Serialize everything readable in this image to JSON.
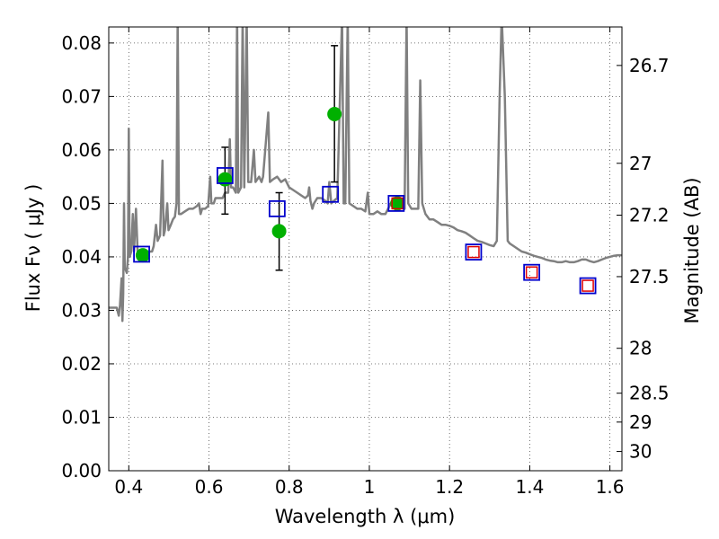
{
  "chart_data": {
    "type": "scatter",
    "xlabel": "Wavelength  λ (μm)",
    "ylabel": "Flux  Fν  ( μJy )",
    "y2label": "Magnitude (AB)",
    "xlim": [
      0.35,
      1.63
    ],
    "ylim": [
      0.0,
      0.083
    ],
    "grid": true,
    "x_ticks": [
      0.4,
      0.6,
      0.8,
      1.0,
      1.2,
      1.4,
      1.6
    ],
    "x_tick_labels": [
      "0.4",
      "0.6",
      "0.8",
      "1",
      "1.2",
      "1.4",
      "1.6"
    ],
    "y_ticks": [
      0.0,
      0.01,
      0.02,
      0.03,
      0.04,
      0.05,
      0.06,
      0.07,
      0.08
    ],
    "y_tick_labels": [
      "0.00",
      "0.01",
      "0.02",
      "0.03",
      "0.04",
      "0.05",
      "0.06",
      "0.07",
      "0.08"
    ],
    "y2_ticks": [
      {
        "label": "26.7",
        "flux": 0.0758
      },
      {
        "label": "27",
        "flux": 0.0575
      },
      {
        "label": "27.2",
        "flux": 0.0478
      },
      {
        "label": "27.5",
        "flux": 0.0363
      },
      {
        "label": "28",
        "flux": 0.0229
      },
      {
        "label": "28.5",
        "flux": 0.0145
      },
      {
        "label": "29",
        "flux": 0.0091
      },
      {
        "label": "30",
        "flux": 0.0036
      }
    ],
    "model_spectrum": {
      "color": "#808080",
      "points": [
        [
          0.35,
          0.0305
        ],
        [
          0.37,
          0.0305
        ],
        [
          0.375,
          0.029
        ],
        [
          0.378,
          0.031
        ],
        [
          0.382,
          0.036
        ],
        [
          0.384,
          0.028
        ],
        [
          0.386,
          0.033
        ],
        [
          0.388,
          0.05
        ],
        [
          0.39,
          0.038
        ],
        [
          0.395,
          0.037
        ],
        [
          0.398,
          0.04
        ],
        [
          0.4,
          0.064
        ],
        [
          0.402,
          0.04
        ],
        [
          0.406,
          0.041
        ],
        [
          0.41,
          0.048
        ],
        [
          0.413,
          0.041
        ],
        [
          0.418,
          0.049
        ],
        [
          0.422,
          0.041
        ],
        [
          0.428,
          0.041
        ],
        [
          0.432,
          0.04
        ],
        [
          0.438,
          0.04
        ],
        [
          0.445,
          0.04
        ],
        [
          0.452,
          0.041
        ],
        [
          0.458,
          0.041
        ],
        [
          0.462,
          0.042
        ],
        [
          0.468,
          0.046
        ],
        [
          0.472,
          0.043
        ],
        [
          0.478,
          0.044
        ],
        [
          0.484,
          0.058
        ],
        [
          0.487,
          0.044
        ],
        [
          0.49,
          0.045
        ],
        [
          0.496,
          0.05
        ],
        [
          0.499,
          0.045
        ],
        [
          0.505,
          0.046
        ],
        [
          0.51,
          0.047
        ],
        [
          0.515,
          0.0475
        ],
        [
          0.519,
          0.05
        ],
        [
          0.522,
          0.085
        ],
        [
          0.525,
          0.048
        ],
        [
          0.53,
          0.048
        ],
        [
          0.54,
          0.0485
        ],
        [
          0.55,
          0.049
        ],
        [
          0.56,
          0.049
        ],
        [
          0.57,
          0.0495
        ],
        [
          0.575,
          0.05
        ],
        [
          0.579,
          0.048
        ],
        [
          0.583,
          0.049
        ],
        [
          0.59,
          0.049
        ],
        [
          0.598,
          0.0495
        ],
        [
          0.603,
          0.055
        ],
        [
          0.606,
          0.05
        ],
        [
          0.612,
          0.05
        ],
        [
          0.616,
          0.051
        ],
        [
          0.625,
          0.051
        ],
        [
          0.634,
          0.051
        ],
        [
          0.64,
          0.052
        ],
        [
          0.648,
          0.052
        ],
        [
          0.652,
          0.062
        ],
        [
          0.655,
          0.053
        ],
        [
          0.66,
          0.053
        ],
        [
          0.667,
          0.052
        ],
        [
          0.67,
          0.085
        ],
        [
          0.673,
          0.052
        ],
        [
          0.68,
          0.053
        ],
        [
          0.684,
          0.085
        ],
        [
          0.688,
          0.053
        ],
        [
          0.694,
          0.085
        ],
        [
          0.698,
          0.054
        ],
        [
          0.705,
          0.054
        ],
        [
          0.712,
          0.06
        ],
        [
          0.716,
          0.054
        ],
        [
          0.725,
          0.055
        ],
        [
          0.731,
          0.054
        ],
        [
          0.735,
          0.055
        ],
        [
          0.748,
          0.067
        ],
        [
          0.752,
          0.054
        ],
        [
          0.76,
          0.0545
        ],
        [
          0.77,
          0.055
        ],
        [
          0.78,
          0.054
        ],
        [
          0.79,
          0.0545
        ],
        [
          0.8,
          0.053
        ],
        [
          0.81,
          0.0525
        ],
        [
          0.82,
          0.052
        ],
        [
          0.83,
          0.0515
        ],
        [
          0.84,
          0.051
        ],
        [
          0.847,
          0.0515
        ],
        [
          0.85,
          0.053
        ],
        [
          0.853,
          0.0505
        ],
        [
          0.858,
          0.049
        ],
        [
          0.862,
          0.05
        ],
        [
          0.87,
          0.051
        ],
        [
          0.88,
          0.051
        ],
        [
          0.89,
          0.0505
        ],
        [
          0.896,
          0.05
        ],
        [
          0.9,
          0.054
        ],
        [
          0.905,
          0.05
        ],
        [
          0.912,
          0.0505
        ],
        [
          0.92,
          0.051
        ],
        [
          0.932,
          0.085
        ],
        [
          0.936,
          0.05
        ],
        [
          0.94,
          0.05
        ],
        [
          0.946,
          0.085
        ],
        [
          0.95,
          0.05
        ],
        [
          0.96,
          0.0495
        ],
        [
          0.97,
          0.049
        ],
        [
          0.98,
          0.049
        ],
        [
          0.99,
          0.0485
        ],
        [
          0.996,
          0.052
        ],
        [
          1.0,
          0.048
        ],
        [
          1.01,
          0.048
        ],
        [
          1.02,
          0.0485
        ],
        [
          1.03,
          0.048
        ],
        [
          1.04,
          0.048
        ],
        [
          1.05,
          0.0495
        ],
        [
          1.06,
          0.051
        ],
        [
          1.07,
          0.05
        ],
        [
          1.08,
          0.0495
        ],
        [
          1.088,
          0.049
        ],
        [
          1.093,
          0.085
        ],
        [
          1.097,
          0.05
        ],
        [
          1.105,
          0.049
        ],
        [
          1.115,
          0.049
        ],
        [
          1.122,
          0.049
        ],
        [
          1.127,
          0.073
        ],
        [
          1.132,
          0.05
        ],
        [
          1.14,
          0.048
        ],
        [
          1.15,
          0.047
        ],
        [
          1.16,
          0.047
        ],
        [
          1.17,
          0.0465
        ],
        [
          1.18,
          0.046
        ],
        [
          1.19,
          0.046
        ],
        [
          1.2,
          0.0458
        ],
        [
          1.21,
          0.0455
        ],
        [
          1.22,
          0.045
        ],
        [
          1.23,
          0.0448
        ],
        [
          1.24,
          0.0445
        ],
        [
          1.25,
          0.044
        ],
        [
          1.26,
          0.0435
        ],
        [
          1.27,
          0.043
        ],
        [
          1.28,
          0.0428
        ],
        [
          1.29,
          0.0425
        ],
        [
          1.3,
          0.0422
        ],
        [
          1.31,
          0.042
        ],
        [
          1.318,
          0.043
        ],
        [
          1.325,
          0.07
        ],
        [
          1.33,
          0.085
        ],
        [
          1.338,
          0.07
        ],
        [
          1.345,
          0.043
        ],
        [
          1.35,
          0.0425
        ],
        [
          1.36,
          0.042
        ],
        [
          1.37,
          0.0415
        ],
        [
          1.38,
          0.041
        ],
        [
          1.39,
          0.0408
        ],
        [
          1.4,
          0.0405
        ],
        [
          1.41,
          0.0402
        ],
        [
          1.42,
          0.04
        ],
        [
          1.43,
          0.0398
        ],
        [
          1.44,
          0.0395
        ],
        [
          1.45,
          0.0393
        ],
        [
          1.46,
          0.0392
        ],
        [
          1.47,
          0.039
        ],
        [
          1.48,
          0.039
        ],
        [
          1.49,
          0.0392
        ],
        [
          1.5,
          0.039
        ],
        [
          1.51,
          0.039
        ],
        [
          1.52,
          0.0392
        ],
        [
          1.53,
          0.0395
        ],
        [
          1.54,
          0.0395
        ],
        [
          1.55,
          0.0392
        ],
        [
          1.56,
          0.039
        ],
        [
          1.57,
          0.0392
        ],
        [
          1.58,
          0.0395
        ],
        [
          1.59,
          0.0398
        ],
        [
          1.6,
          0.04
        ],
        [
          1.61,
          0.0402
        ],
        [
          1.62,
          0.0403
        ],
        [
          1.63,
          0.0403
        ]
      ]
    },
    "observed": {
      "color": "#00b000",
      "points": [
        {
          "x": 0.435,
          "y": 0.0403,
          "err": null
        },
        {
          "x": 0.64,
          "y": 0.0545,
          "err": [
            0.048,
            0.0605
          ]
        },
        {
          "x": 0.775,
          "y": 0.0448,
          "err": [
            0.0375,
            0.052
          ]
        },
        {
          "x": 0.913,
          "y": 0.0667,
          "err": [
            0.054,
            0.0795
          ]
        },
        {
          "x": 1.07,
          "y": 0.05,
          "err": null
        }
      ]
    },
    "model_photometry": {
      "color": "#0000cc",
      "points": [
        {
          "x": 0.432,
          "y": 0.0405
        },
        {
          "x": 0.64,
          "y": 0.0552
        },
        {
          "x": 0.77,
          "y": 0.049
        },
        {
          "x": 0.903,
          "y": 0.0517
        },
        {
          "x": 1.067,
          "y": 0.05
        },
        {
          "x": 1.26,
          "y": 0.0409
        },
        {
          "x": 1.405,
          "y": 0.0371
        },
        {
          "x": 1.545,
          "y": 0.0346
        }
      ]
    },
    "red_squares": {
      "color": "#e00000",
      "points": [
        {
          "x": 1.07,
          "y": 0.05
        },
        {
          "x": 1.26,
          "y": 0.0409
        },
        {
          "x": 1.405,
          "y": 0.0371
        },
        {
          "x": 1.545,
          "y": 0.0346
        }
      ]
    }
  }
}
